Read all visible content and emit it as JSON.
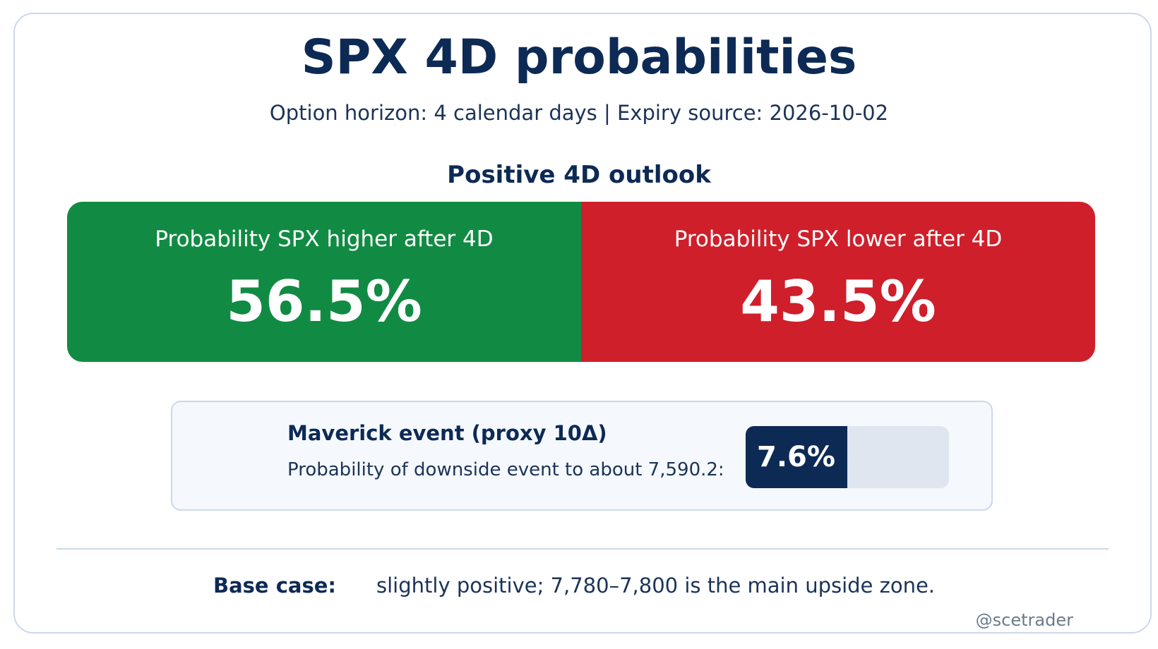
{
  "title": "SPX 4D probabilities",
  "subtitle": "Option horizon: 4 calendar days | Expiry source: 2026-10-02",
  "outlook": "Positive 4D outlook",
  "probabilities": {
    "higher": {
      "label": "Probability SPX higher after 4D",
      "value": "56.5%",
      "fraction": 0.565,
      "color": "#118b43"
    },
    "lower": {
      "label": "Probability SPX lower after 4D",
      "value": "43.5%",
      "fraction": 0.435,
      "color": "#cf1f2a"
    }
  },
  "maverick": {
    "title": "Maverick event (proxy 10Δ)",
    "description": "Probability of downside event to about 7,590.2:",
    "value": "7.6%",
    "fill_fraction": 0.5,
    "fill_color": "#0d2a55",
    "track_color": "#dfe6f0"
  },
  "base_case": {
    "label": "Base case:",
    "text": "slightly positive; 7,780–7,800 is the main upside zone."
  },
  "handle": "@scetrader",
  "colors": {
    "navy": "#0d2a55",
    "green": "#118b43",
    "red": "#cf1f2a",
    "border": "#ccd8ea"
  }
}
